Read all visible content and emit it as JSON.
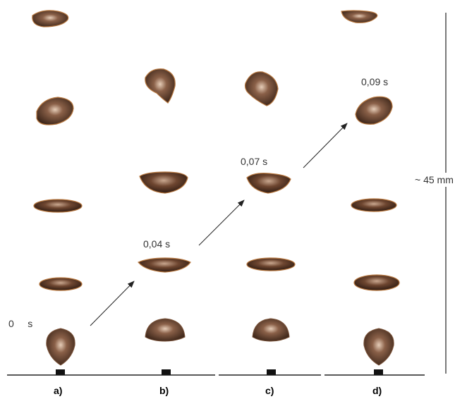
{
  "panels": [
    {
      "label": "a)"
    },
    {
      "label": "b)"
    },
    {
      "label": "c)"
    },
    {
      "label": "d)"
    }
  ],
  "time_labels": {
    "t0": "0     s",
    "t1": "0,04 s",
    "t2": "0,07 s",
    "t3": "0,09 s"
  },
  "scale_label": "~ 45 mm",
  "colors": {
    "drop_dark": "#3a2418",
    "drop_mid": "#7a5238",
    "drop_light": "#e6cdb8",
    "drop_rim": "#b7773f",
    "nozzle": "#111111",
    "baseline": "#222222",
    "arrow": "#222222"
  }
}
